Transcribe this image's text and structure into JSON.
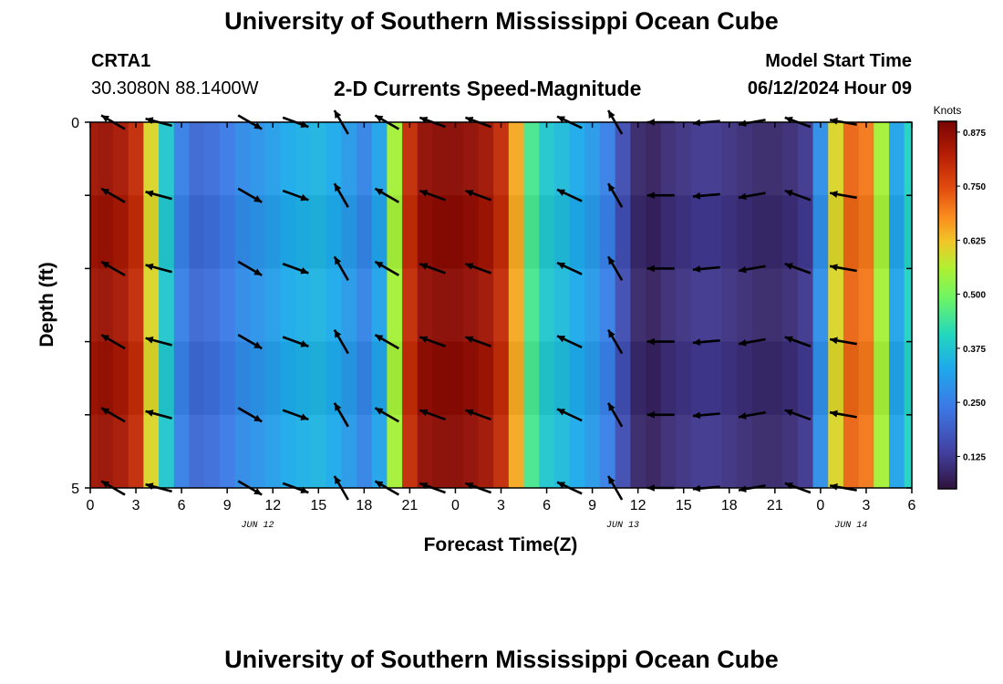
{
  "header": {
    "title": "University of Southern Mississippi Ocean Cube",
    "station_id": "CRTA1",
    "station_coords": "30.3080N  88.1400W",
    "plot_title": "2-D Currents Speed-Magnitude",
    "model_start_label": "Model Start Time",
    "model_start_value": "06/12/2024 Hour 09"
  },
  "footer": {
    "title": "University of Southern Mississippi Ocean Cube"
  },
  "chart_data": {
    "type": "heatmap",
    "xlabel": "Forecast Time(Z)",
    "ylabel": "Depth (ft)",
    "y_tick_labels": [
      "0",
      "5"
    ],
    "ylim": [
      0,
      5
    ],
    "x_tick_labels": [
      "0",
      "3",
      "6",
      "9",
      "12",
      "15",
      "18",
      "21",
      "0",
      "3",
      "6",
      "9",
      "12",
      "15",
      "18",
      "21",
      "0",
      "3",
      "6"
    ],
    "date_labels": [
      {
        "text": "JUN 12",
        "hour": 11
      },
      {
        "text": "JUN 13",
        "hour": 35
      },
      {
        "text": "JUN 14",
        "hour": 50
      }
    ],
    "colorbar": {
      "label": "Knots",
      "ticks": [
        "0.875",
        "0.750",
        "0.625",
        "0.500",
        "0.375",
        "0.250",
        "0.125"
      ],
      "tick_values": [
        0.875,
        0.75,
        0.625,
        0.5,
        0.375,
        0.25,
        0.125
      ],
      "range": [
        0.05,
        0.9
      ]
    },
    "time_hours": [
      0,
      1,
      2,
      3,
      4,
      5,
      6,
      7,
      8,
      9,
      10,
      11,
      12,
      13,
      14,
      15,
      16,
      17,
      18,
      19,
      20,
      21,
      22,
      23,
      24,
      25,
      26,
      27,
      28,
      29,
      30,
      31,
      32,
      33,
      34,
      35,
      36,
      37,
      38,
      39,
      40,
      41,
      42,
      43,
      44,
      45,
      46,
      47,
      48,
      49,
      50,
      51,
      52,
      53,
      54
    ],
    "speed_knots": [
      0.85,
      0.86,
      0.84,
      0.8,
      0.6,
      0.38,
      0.25,
      0.21,
      0.22,
      0.24,
      0.27,
      0.29,
      0.31,
      0.33,
      0.34,
      0.35,
      0.33,
      0.3,
      0.26,
      0.32,
      0.55,
      0.8,
      0.87,
      0.88,
      0.88,
      0.87,
      0.85,
      0.8,
      0.65,
      0.45,
      0.38,
      0.36,
      0.33,
      0.3,
      0.25,
      0.16,
      0.09,
      0.08,
      0.1,
      0.11,
      0.12,
      0.12,
      0.11,
      0.1,
      0.09,
      0.09,
      0.1,
      0.12,
      0.28,
      0.6,
      0.72,
      0.7,
      0.55,
      0.32,
      0.4
    ],
    "vector_times": [
      1.5,
      4.5,
      10.5,
      13.5,
      16.5,
      19.5,
      22.5,
      25.5,
      31.5,
      34.5,
      37.5,
      40.5,
      43.5,
      46.5,
      49.5
    ],
    "vector_depths_ft": [
      0,
      1,
      2,
      3,
      4,
      5
    ],
    "vector_direction_deg": [
      300,
      285,
      120,
      110,
      330,
      300,
      290,
      290,
      295,
      330,
      270,
      265,
      260,
      290,
      280
    ]
  }
}
